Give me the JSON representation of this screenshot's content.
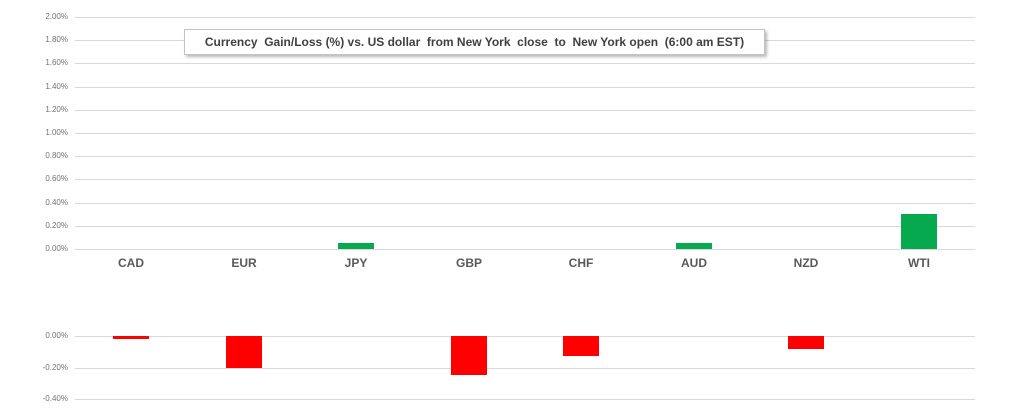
{
  "title": "Currency  Gain/Loss (%) vs. US dollar  from New York  close  to  New York open  (6:00 am EST)",
  "colors": {
    "positive_bar": "#06a94d",
    "negative_bar": "#fe0000",
    "gridline": "#d9d9d9",
    "axis_tick_text": "#737373",
    "category_text": "#595959",
    "title_text": "#404040",
    "title_border": "#c3c3c3",
    "background": "#ffffff"
  },
  "chart_data": {
    "type": "bar",
    "title": "Currency  Gain/Loss (%) vs. US dollar  from New York  close  to  New York open  (6:00 am EST)",
    "categories": [
      "CAD",
      "EUR",
      "JPY",
      "GBP",
      "CHF",
      "AUD",
      "NZD",
      "WTI"
    ],
    "values": [
      -0.02,
      -0.2,
      0.05,
      -0.25,
      -0.13,
      0.05,
      -0.08,
      0.3
    ],
    "unit": "percent",
    "xlabel": "",
    "ylabel": "",
    "grid": true,
    "legend": false,
    "upper_axis": {
      "ticks": [
        "2.00%",
        "1.80%",
        "1.60%",
        "1.40%",
        "1.20%",
        "1.00%",
        "0.80%",
        "0.60%",
        "0.40%",
        "0.20%",
        "0.00%"
      ],
      "range": [
        0.0,
        2.0
      ]
    },
    "lower_axis": {
      "ticks": [
        "0.00%",
        "-0.20%",
        "-0.40%"
      ],
      "range": [
        -0.4,
        0.0
      ]
    }
  }
}
